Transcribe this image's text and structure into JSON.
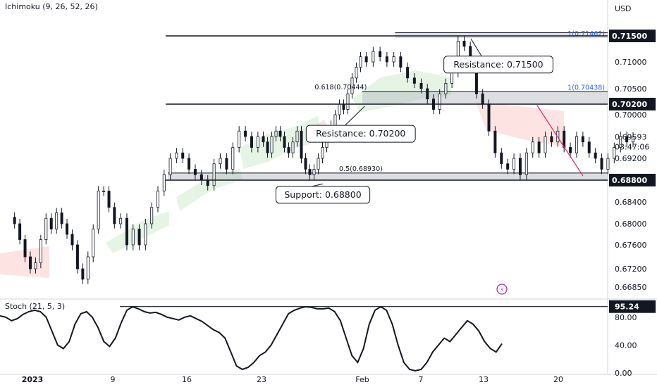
{
  "header": {
    "indicator": "Ichimoku (9, 26, 52, 26)",
    "currency": "USD"
  },
  "stoch_panel": {
    "label": "Stoch (21, 5, 3)"
  },
  "colors": {
    "up": "#26a69a",
    "down": "#ef5350",
    "candle": "#131722",
    "zone": "#b2b5be",
    "cloud_green": "#4caf50",
    "cloud_red": "#f44336",
    "fib": "#2962ff",
    "trendline": "#e91e63"
  },
  "chart_data": [
    {
      "type": "candlestick",
      "x_tick_labels": [
        "2023",
        "9",
        "16",
        "23",
        "Feb",
        "7",
        "13",
        "20"
      ],
      "y_tick_labels": [
        "0.71000",
        "0.70500",
        "0.70000",
        "0.69200",
        "0.68400",
        "0.68000",
        "0.67600",
        "0.67200",
        "0.66850"
      ],
      "ylim": [
        0.666,
        0.72
      ],
      "price_tags": [
        {
          "label": "0.71500",
          "value": 0.715,
          "style": "black"
        },
        {
          "label": "0.70200",
          "value": 0.702,
          "style": "black"
        },
        {
          "label": "0.69593",
          "value": 0.69593,
          "style": "plain"
        },
        {
          "label": "03:47:06",
          "value": 0.6941,
          "style": "plain"
        },
        {
          "label": "0.68800",
          "value": 0.688,
          "style": "black"
        }
      ],
      "zones": [
        {
          "from": 0.7146,
          "to": 0.7156,
          "start": 39.8,
          "end": 62
        },
        {
          "from": 0.7021,
          "to": 0.7044,
          "start": 37.0,
          "end": 62
        },
        {
          "from": 0.688,
          "to": 0.6893,
          "start": 14.2,
          "end": 62
        }
      ],
      "fib_labels": [
        {
          "text": "1(0.71462)",
          "value": 0.71462,
          "x": 58.0
        },
        {
          "text": "1(0.70438)",
          "value": 0.70438,
          "x": 58.0
        },
        {
          "text": "0.618(0.70444)",
          "value": 0.70444,
          "x": 34.0
        },
        {
          "text": "0.5(0.68930)",
          "value": 0.6893,
          "x": 36.8
        }
      ],
      "annotations": [
        {
          "text": "Resistance: 0.71500",
          "box_x": 44.2,
          "box_value": 0.7095,
          "point_x": 46.8,
          "point_value": 0.7144
        },
        {
          "text": "Resistance: 0.70200",
          "box_x": 29.2,
          "box_value": 0.6965,
          "point_x": 37.2,
          "point_value": 0.7016
        },
        {
          "text": "Support: 0.68800",
          "box_x": 25.0,
          "box_value": 0.6853,
          "point_x": 31.5,
          "point_value": 0.6873
        }
      ],
      "trendline": {
        "x1": 53.0,
        "y1": 0.7018,
        "x2": 57.3,
        "y2": 0.6888
      },
      "closes": [
        0.68,
        0.677,
        0.674,
        0.672,
        0.673,
        0.677,
        0.681,
        0.679,
        0.682,
        0.68,
        0.678,
        0.676,
        0.672,
        0.67,
        0.674,
        0.679,
        0.686,
        0.686,
        0.683,
        0.68,
        0.681,
        0.676,
        0.679,
        0.676,
        0.68,
        0.683,
        0.686,
        0.689,
        0.692,
        0.693,
        0.692,
        0.69,
        0.689,
        0.688,
        0.687,
        0.691,
        0.692,
        0.69,
        0.694,
        0.697,
        0.696,
        0.694,
        0.696,
        0.695,
        0.693,
        0.696,
        0.697,
        0.696,
        0.694,
        0.693,
        0.695,
        0.697,
        0.692,
        0.69,
        0.689,
        0.69,
        0.692,
        0.694,
        0.696,
        0.698,
        0.7,
        0.702,
        0.701,
        0.704,
        0.707,
        0.709,
        0.711,
        0.71,
        0.712,
        0.711,
        0.71,
        0.711,
        0.709,
        0.707,
        0.706,
        0.705,
        0.703,
        0.701,
        0.704,
        0.706,
        0.708,
        0.714,
        0.713,
        0.71,
        0.704,
        0.702,
        0.697,
        0.693,
        0.691,
        0.69,
        0.692,
        0.689,
        0.693,
        0.695,
        0.693,
        0.696,
        0.695,
        0.697,
        0.694,
        0.693,
        0.696,
        0.695,
        0.693,
        0.692,
        0.69,
        0.692,
        0.694,
        0.696,
        0.695,
        0.6959
      ],
      "x_range": [
        -2,
        62
      ],
      "stochastic": {
        "label": "Stoch (21, 5, 3)",
        "ylim": [
          0,
          100
        ],
        "level_tag": "95.24",
        "tick_labels": [
          "80.00",
          "40.00",
          "0.00"
        ],
        "values": [
          82,
          80,
          75,
          78,
          84,
          88,
          90,
          88,
          80,
          60,
          40,
          35,
          45,
          70,
          85,
          88,
          80,
          65,
          45,
          38,
          50,
          72,
          90,
          95,
          92,
          88,
          86,
          87,
          84,
          80,
          78,
          76,
          80,
          82,
          78,
          74,
          68,
          62,
          58,
          50,
          30,
          10,
          5,
          8,
          15,
          25,
          30,
          40,
          55,
          70,
          85,
          90,
          93,
          95,
          94,
          92,
          92,
          93,
          88,
          75,
          50,
          25,
          15,
          35,
          70,
          90,
          95,
          90,
          70,
          40,
          15,
          5,
          3,
          5,
          15,
          30,
          40,
          50,
          45,
          55,
          65,
          75,
          70,
          60,
          45,
          35,
          30,
          42
        ]
      }
    }
  ]
}
